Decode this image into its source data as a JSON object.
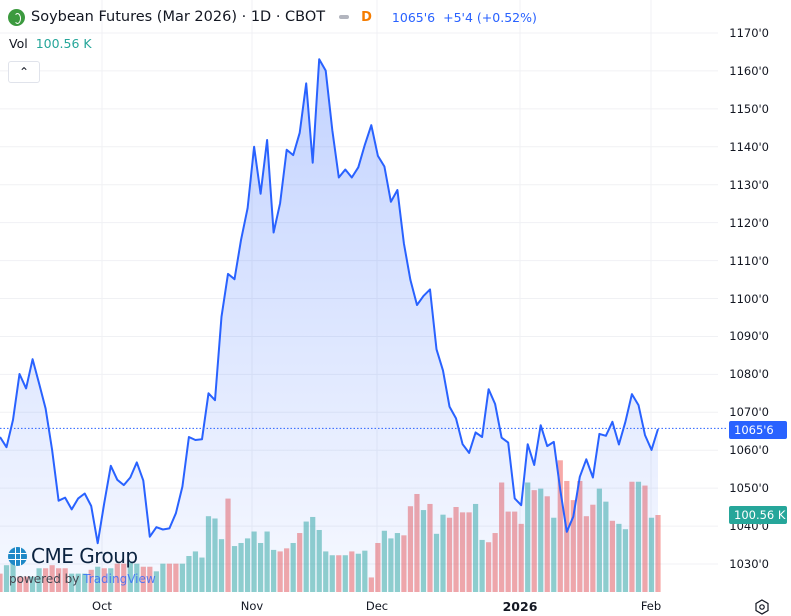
{
  "header": {
    "title": "Soybean Futures (Mar 2026) · 1D · CBOT",
    "interval": "D",
    "last_price": "1065'6",
    "change": "+5'4 (+0.52%)"
  },
  "volume_legend": {
    "label": "Vol",
    "value": "100.56 K"
  },
  "collapse_icon": "chevron-up-icon",
  "price_axis": [
    "1170'0",
    "1160'0",
    "1150'0",
    "1140'0",
    "1130'0",
    "1120'0",
    "1110'0",
    "1100'0",
    "1090'0",
    "1080'0",
    "1070'0",
    "1060'0",
    "1050'0",
    "1040'0",
    "1030'0"
  ],
  "time_axis": [
    {
      "label": "Oct",
      "bold": false
    },
    {
      "label": "Nov",
      "bold": false
    },
    {
      "label": "Dec",
      "bold": false
    },
    {
      "label": "2026",
      "bold": true
    },
    {
      "label": "Feb",
      "bold": false
    }
  ],
  "price_tag": "1065'6",
  "volume_tag": "100.56 K",
  "branding": {
    "logo_text": "CME Group",
    "powered_prefix": "powered by",
    "powered_brand": "TradingView"
  },
  "colors": {
    "line": "#2962ff",
    "up": "#26a69a",
    "down": "#ef5350",
    "interval": "#f57c00"
  },
  "chart_data": {
    "type": "line",
    "title": "Soybean Futures (Mar 2026) · 1D · CBOT",
    "ylim": [
      1025,
      1172
    ],
    "price_series": [
      1063.5,
      1060.8,
      1068.0,
      1080.1,
      1076.3,
      1084.0,
      1077.6,
      1071.0,
      1060.1,
      1046.7,
      1047.5,
      1044.4,
      1047.3,
      1048.6,
      1045.3,
      1035.5,
      1046.0,
      1055.9,
      1052.2,
      1050.8,
      1052.8,
      1056.8,
      1052.0,
      1037.2,
      1039.7,
      1039.1,
      1039.4,
      1043.4,
      1050.4,
      1063.5,
      1062.7,
      1062.9,
      1075.0,
      1073.2,
      1095.2,
      1106.5,
      1105.1,
      1115.4,
      1123.8,
      1140.0,
      1127.6,
      1141.8,
      1117.4,
      1125.1,
      1139.2,
      1137.8,
      1143.7,
      1156.7,
      1135.8,
      1163.1,
      1160.1,
      1144.4,
      1131.9,
      1134.0,
      1131.9,
      1134.6,
      1140.5,
      1145.7,
      1137.6,
      1134.8,
      1125.5,
      1128.6,
      1114.5,
      1104.9,
      1098.3,
      1100.7,
      1102.4,
      1086.6,
      1081.0,
      1071.5,
      1068.4,
      1061.6,
      1059.3,
      1064.7,
      1063.5,
      1076.1,
      1072.2,
      1063.3,
      1062.0,
      1047.3,
      1045.5,
      1061.6,
      1056.1,
      1066.6,
      1061.1,
      1062.2,
      1049.5,
      1038.5,
      1042.5,
      1053.0,
      1057.6,
      1052.8,
      1064.3,
      1063.8,
      1067.5,
      1061.5,
      1067.5,
      1074.8,
      1071.9,
      1064.0,
      1060.1,
      1065.6
    ],
    "volume_k": [
      24,
      35,
      42,
      20,
      20,
      20,
      31,
      31,
      35,
      31,
      31,
      24,
      24,
      24,
      29,
      33,
      31,
      31,
      37,
      37,
      40,
      37,
      33,
      33,
      27,
      37,
      37,
      37,
      37,
      47,
      53,
      45,
      99,
      96,
      69,
      122,
      60,
      64,
      70,
      79,
      64,
      79,
      55,
      53,
      57,
      64,
      77,
      92,
      98,
      81,
      53,
      48,
      48,
      48,
      53,
      50,
      54,
      19,
      64,
      80,
      70,
      77,
      74,
      112,
      128,
      107,
      115,
      76,
      101,
      97,
      111,
      104,
      104,
      115,
      68,
      65,
      77,
      143,
      105,
      105,
      89,
      143,
      133,
      135,
      125,
      97,
      172,
      145,
      120,
      145,
      99,
      114,
      135,
      118,
      93,
      89,
      82,
      144,
      144,
      139,
      97,
      100.56
    ],
    "volume_direction": "duudduudddduuudududduudduudduuuuuuuduuuuuuudduduuuuududuudduuuddduduudddduuddddddudududddddduuduudududduuuuududuuddd u",
    "current_price": 1065.75
  }
}
